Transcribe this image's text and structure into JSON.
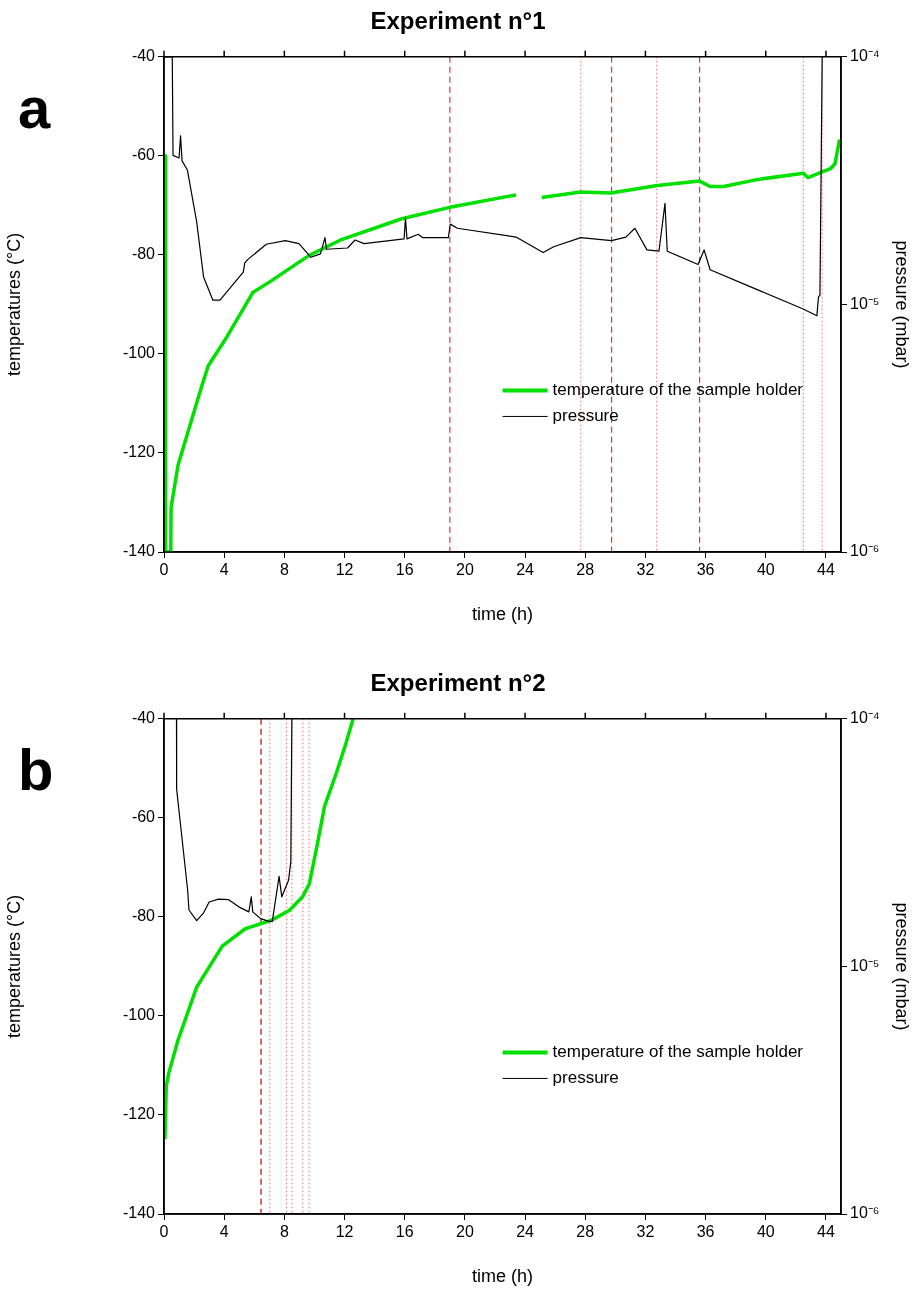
{
  "chart_data": [
    {
      "type": "line",
      "title": "Experiment n°1",
      "xlabel": "time (h)",
      "ylabel": "temperatures (°C)",
      "y2label": "pressure (mbar)",
      "annotations": [
        "a"
      ],
      "xlim": [
        0,
        45
      ],
      "xticks": [
        0,
        4,
        8,
        12,
        16,
        20,
        24,
        28,
        32,
        36,
        40,
        44
      ],
      "ylim": [
        -140,
        -40
      ],
      "yticks": [
        -140,
        -120,
        -100,
        -80,
        -60,
        -40
      ],
      "y2lim": [
        1e-06,
        0.0001
      ],
      "y2ticks": [
        {
          "value": 1e-06,
          "label": "10⁻⁶"
        },
        {
          "value": 1e-05,
          "label": "10⁻⁵"
        },
        {
          "value": 0.0001,
          "label": "10⁻⁴"
        }
      ],
      "log": "y2",
      "grid": false,
      "legend": "bottom right",
      "series": [
        {
          "name": "temperature of the sample holder",
          "color": "#00e000",
          "x": [
            0.05,
            0.07,
            0.1,
            0.45,
            0.47,
            0.93,
            2.48,
            2.94,
            4.03,
            5.9,
            7.1,
            9.6,
            11.8,
            15.8,
            19.0,
            23.4,
            24.2,
            25.1,
            27.7,
            29.7,
            32.8,
            35.6,
            36.3,
            37.2,
            39.4,
            42.5,
            42.8,
            44.3,
            44.6,
            44.9
          ],
          "values": [
            -140,
            -60,
            -140,
            -140,
            -131,
            -122.5,
            -106.8,
            -102.4,
            -97.3,
            -87.6,
            -85.3,
            -80.2,
            -76.9,
            -72.7,
            -70.4,
            -67.9,
            null,
            -68.4,
            -67.3,
            -67.5,
            -66.0,
            -65.1,
            -66.2,
            -66.2,
            -64.8,
            -63.5,
            -64.4,
            -62.6,
            -61.6,
            -56.7
          ]
        },
        {
          "name": "pressure",
          "color": "#000000",
          "axis": "y2",
          "x": [
            0.05,
            0.55,
            0.6,
            1.0,
            1.1,
            1.2,
            1.55,
            2.17,
            2.63,
            3.25,
            3.72,
            5.27,
            5.37,
            5.58,
            6.8,
            8.06,
            8.97,
            9.76,
            10.4,
            10.7,
            10.8,
            12.2,
            12.7,
            13.3,
            15.96,
            16.05,
            16.15,
            16.9,
            17.2,
            18.9,
            19.03,
            19.5,
            23.4,
            25.2,
            25.9,
            27.7,
            29.75,
            30.7,
            31.3,
            32.1,
            32.9,
            33.3,
            33.45,
            35.5,
            35.9,
            36.3,
            42.45,
            43.4,
            43.5,
            43.6,
            43.75
          ],
          "values": [
            0.0001,
            0.0001,
            4e-05,
            3.9e-05,
            4.8e-05,
            3.8e-05,
            3.5e-05,
            2.16e-05,
            1.29e-05,
            1.04e-05,
            1.04e-05,
            1.35e-05,
            1.47e-05,
            1.52e-05,
            1.75e-05,
            1.81e-05,
            1.76e-05,
            1.55e-05,
            1.6e-05,
            1.86e-05,
            1.67e-05,
            1.69e-05,
            1.82e-05,
            1.76e-05,
            1.84e-05,
            2.23e-05,
            1.84e-05,
            1.92e-05,
            1.86e-05,
            1.86e-05,
            2.11e-05,
            2.03e-05,
            1.87e-05,
            1.62e-05,
            1.71e-05,
            1.86e-05,
            1.81e-05,
            1.87e-05,
            2.03e-05,
            1.66e-05,
            1.64e-05,
            2.56e-05,
            1.64e-05,
            1.45e-05,
            1.66e-05,
            1.38e-05,
            9.6e-06,
            9e-06,
            1.07e-05,
            1.09e-05,
            0.0001
          ]
        }
      ],
      "ref_lines": [
        {
          "axis": "x",
          "value": 19.0,
          "color": "#e83030",
          "line_style": "dashed"
        },
        {
          "axis": "x",
          "value": 27.7,
          "color": "#f08080",
          "line_style": "dotted"
        },
        {
          "axis": "x",
          "value": 29.75,
          "color": "#e83030",
          "line_style": "dashed"
        },
        {
          "axis": "x",
          "value": 32.75,
          "color": "#f08080",
          "line_style": "dotted"
        },
        {
          "axis": "x",
          "value": 35.6,
          "color": "#e83030",
          "line_style": "dashed"
        },
        {
          "axis": "x",
          "value": 42.5,
          "color": "#f08080",
          "line_style": "dotted"
        },
        {
          "axis": "x",
          "value": 43.75,
          "color": "#f08080",
          "line_style": "dotted"
        }
      ]
    },
    {
      "type": "line",
      "title": "Experiment n°2",
      "xlabel": "time (h)",
      "ylabel": "temperatures (°C)",
      "y2label": "pressure (mbar)",
      "annotations": [
        "b"
      ],
      "xlim": [
        0,
        45
      ],
      "xticks": [
        0,
        4,
        8,
        12,
        16,
        20,
        24,
        28,
        32,
        36,
        40,
        44
      ],
      "ylim": [
        -140,
        -40
      ],
      "yticks": [
        -140,
        -120,
        -100,
        -80,
        -60,
        -40
      ],
      "y2lim": [
        1e-06,
        0.0001
      ],
      "y2ticks": [
        {
          "value": 1e-06,
          "label": "10⁻⁶"
        },
        {
          "value": 1e-05,
          "label": "10⁻⁵"
        },
        {
          "value": 0.0001,
          "label": "10⁻⁴"
        }
      ],
      "log": "y2",
      "grid": false,
      "legend": "bottom right",
      "series": [
        {
          "name": "temperature of the sample holder",
          "color": "#00e000",
          "x": [
            0.06,
            0.15,
            0.31,
            0.93,
            2.17,
            3.87,
            5.4,
            7.13,
            8.32,
            9.2,
            9.66,
            10.2,
            10.67,
            11.45,
            12.1,
            12.57
          ],
          "values": [
            -124.9,
            -114.2,
            -111.6,
            -104.9,
            -94.2,
            -85.9,
            -82.4,
            -80.7,
            -78.7,
            -76.0,
            -73.3,
            -65.2,
            -57.7,
            -51.0,
            -44.9,
            -40
          ]
        },
        {
          "name": "pressure",
          "color": "#000000",
          "axis": "y2",
          "x": [
            0.83,
            0.84,
            1.16,
            1.57,
            1.66,
            2.17,
            2.62,
            3.0,
            3.62,
            4.3,
            4.97,
            5.64,
            5.8,
            5.9,
            6.42,
            6.98,
            7.2,
            7.65,
            7.83,
            8.28,
            8.43,
            8.5
          ],
          "values": [
            0.0001,
            5.2e-05,
            3.45e-05,
            2.04e-05,
            1.69e-05,
            1.53e-05,
            1.64e-05,
            1.82e-05,
            1.87e-05,
            1.86e-05,
            1.74e-05,
            1.66e-05,
            1.91e-05,
            1.66e-05,
            1.56e-05,
            1.52e-05,
            1.52e-05,
            2.31e-05,
            1.91e-05,
            2.23e-05,
            2.65e-05,
            0.0001
          ]
        }
      ],
      "ref_lines": [
        {
          "axis": "x",
          "value": 6.45,
          "color": "#c00000",
          "line_style": "dashed"
        },
        {
          "axis": "x",
          "value": 7.03,
          "color": "#f08080",
          "line_style": "dotted"
        },
        {
          "axis": "x",
          "value": 8.15,
          "color": "#f08080",
          "line_style": "dotted"
        },
        {
          "axis": "x",
          "value": 8.5,
          "color": "#f08080",
          "line_style": "dotted"
        },
        {
          "axis": "x",
          "value": 9.23,
          "color": "#f08080",
          "line_style": "dotted"
        },
        {
          "axis": "x",
          "value": 9.64,
          "color": "#f08080",
          "line_style": "dotted"
        }
      ]
    }
  ]
}
